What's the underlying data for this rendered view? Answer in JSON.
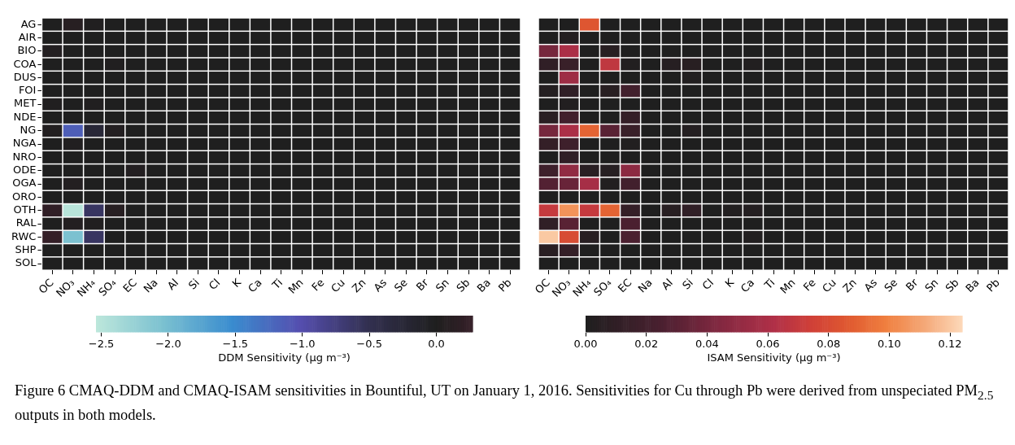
{
  "chart_data": [
    {
      "type": "heatmap",
      "clabel": "DDM Sensitivity (μg m⁻³)",
      "categories": [
        "OC",
        "NO₃",
        "NH₄",
        "SO₄",
        "EC",
        "Na",
        "Al",
        "Si",
        "Cl",
        "K",
        "Ca",
        "Ti",
        "Mn",
        "Fe",
        "Cu",
        "Zn",
        "As",
        "Se",
        "Br",
        "Sn",
        "Sb",
        "Ba",
        "Pb"
      ],
      "y_categories": [
        "AG",
        "AIR",
        "BIO",
        "COA",
        "DUS",
        "FOI",
        "MET",
        "NDE",
        "NG",
        "NGA",
        "NRO",
        "ODE",
        "OGA",
        "ORO",
        "OTH",
        "RAL",
        "RWC",
        "SHP",
        "SOL"
      ],
      "cells": [
        [
          0,
          0.1,
          0.02,
          0,
          0,
          0,
          0,
          0,
          0,
          0,
          0,
          0,
          0,
          0,
          0,
          0,
          0,
          0,
          0,
          0,
          0,
          0,
          0
        ],
        [
          0,
          0,
          0,
          0,
          0,
          0,
          0,
          0,
          0,
          0,
          0,
          0,
          0,
          0,
          0,
          0,
          0,
          0,
          0,
          0,
          0,
          0,
          0
        ],
        [
          0.05,
          0,
          0,
          0,
          0,
          0,
          0,
          0,
          0,
          0,
          0,
          0,
          0,
          0,
          0,
          0,
          0,
          0,
          0,
          0,
          0,
          0,
          0
        ],
        [
          0,
          0,
          0,
          0.02,
          0,
          0,
          0,
          0,
          0,
          0,
          0,
          0,
          0,
          0,
          0,
          0,
          0,
          0,
          0,
          0,
          0,
          0,
          0
        ],
        [
          0,
          0,
          0,
          0,
          0,
          0,
          0,
          0,
          0,
          0,
          0,
          0,
          0,
          0,
          0,
          0,
          0,
          0,
          0,
          0,
          0,
          0,
          0
        ],
        [
          0,
          0,
          0,
          0,
          0,
          0,
          0,
          0,
          0,
          0,
          0,
          0,
          0,
          0,
          0,
          0,
          0,
          0,
          0,
          0,
          0,
          0,
          0
        ],
        [
          0.02,
          0,
          0.02,
          0,
          0,
          0,
          0,
          0,
          0,
          0,
          0,
          0,
          0,
          0,
          0,
          0,
          0,
          0,
          0,
          0,
          0,
          0,
          0
        ],
        [
          0,
          0,
          0,
          0,
          0,
          0,
          0,
          0,
          0,
          0,
          0,
          0,
          0,
          0,
          0,
          0,
          0,
          0,
          0,
          0,
          0,
          0,
          0
        ],
        [
          0.03,
          -1.15,
          -0.25,
          0.05,
          0,
          0,
          0,
          0,
          0,
          0,
          0,
          0,
          0,
          0,
          0,
          0,
          0,
          0,
          0,
          0,
          0,
          0,
          0
        ],
        [
          0,
          0.02,
          0,
          0,
          0,
          0,
          0,
          0,
          0,
          0,
          0,
          0,
          0,
          0,
          0,
          0,
          0,
          0,
          0,
          0,
          0,
          0,
          0
        ],
        [
          0,
          0,
          0,
          0,
          0,
          0,
          0,
          0,
          0,
          0,
          0,
          0,
          0,
          0,
          0,
          0,
          0,
          0,
          0,
          0,
          0,
          0,
          0
        ],
        [
          0,
          0,
          0,
          0,
          0.05,
          0,
          0,
          0,
          0,
          0,
          0,
          0,
          0,
          0,
          0,
          0,
          0,
          0,
          0,
          0,
          0,
          0,
          0
        ],
        [
          0,
          0.05,
          0,
          0,
          0,
          0,
          0,
          0,
          0,
          0,
          0,
          0,
          0,
          0,
          0,
          0,
          0,
          0,
          0,
          0,
          0,
          0,
          0
        ],
        [
          0,
          0,
          0,
          0,
          0,
          0,
          0,
          0,
          0,
          0,
          0,
          0,
          0,
          0,
          0,
          0,
          0,
          0,
          0,
          0,
          0,
          0,
          0
        ],
        [
          0.2,
          -2.5,
          -0.6,
          0.1,
          0,
          0,
          0,
          0,
          0,
          0,
          0,
          0,
          0,
          0,
          0,
          0,
          0,
          0,
          0,
          0,
          0,
          0,
          0
        ],
        [
          0,
          0.05,
          0.02,
          0,
          0,
          0,
          0,
          0,
          0,
          0,
          0,
          0,
          0,
          0,
          0,
          0,
          0,
          0,
          0,
          0,
          0,
          0,
          0
        ],
        [
          0.25,
          -2.05,
          -0.6,
          0,
          0,
          0,
          0,
          0,
          0,
          0,
          0,
          0,
          0,
          0,
          0,
          0,
          0,
          0,
          0,
          0,
          0,
          0,
          0
        ],
        [
          0,
          0,
          0,
          0,
          0,
          0,
          0,
          0,
          0,
          0,
          0,
          0,
          0,
          0,
          0,
          0,
          0,
          0,
          0,
          0,
          0,
          0,
          0
        ],
        [
          0,
          0,
          0,
          0,
          0,
          0,
          0,
          0,
          0,
          0,
          0,
          0,
          0,
          0,
          0,
          0,
          0,
          0,
          0,
          0,
          0,
          0,
          0
        ]
      ],
      "clim": [
        -2.54,
        0.27
      ],
      "cticks": [
        {
          "value": -2.5,
          "label": "−2.5"
        },
        {
          "value": -2,
          "label": "−2.0"
        },
        {
          "value": -1.5,
          "label": "−1.5"
        },
        {
          "value": -1,
          "label": "−1.0"
        },
        {
          "value": -0.5,
          "label": "−0.5"
        },
        {
          "value": 0,
          "label": "0.0"
        }
      ],
      "annotations": [
        "Figure 6 CMAQ-DDM and CMAQ-ISAM sensitivities in Bountiful, UT on January 1, 2016. Sensitivities for Cu through Pb were derived from unspeciated PM$_{2.5}$ outputs in both models."
      ]
    },
    {
      "type": "heatmap",
      "clabel": "ISAM Sensitivity (μg m⁻³)",
      "tick_labels": "x",
      "categories": [
        "OC",
        "NO₃",
        "NH₄",
        "SO₄",
        "EC",
        "Na",
        "Al",
        "Si",
        "Cl",
        "K",
        "Ca",
        "Ti",
        "Mn",
        "Fe",
        "Cu",
        "Zn",
        "As",
        "Se",
        "Br",
        "Sn",
        "Sb",
        "Ba",
        "Pb"
      ],
      "y_categories": [
        null,
        null,
        null,
        null,
        null,
        null,
        null,
        null,
        null,
        null,
        null,
        null,
        null,
        null,
        null,
        null,
        null,
        null,
        null
      ],
      "cells": [
        [
          0,
          0,
          0.085,
          0,
          0,
          0,
          0,
          0,
          0,
          0,
          0,
          0,
          0,
          0,
          0,
          0,
          0,
          0,
          0,
          0,
          0,
          0,
          0
        ],
        [
          0,
          0.003,
          0,
          0,
          0,
          0,
          0,
          0,
          0,
          0,
          0,
          0,
          0,
          0,
          0,
          0,
          0,
          0,
          0,
          0,
          0,
          0,
          0
        ],
        [
          0.04,
          0.06,
          0,
          0.005,
          0,
          0,
          0,
          0,
          0,
          0,
          0,
          0,
          0,
          0,
          0,
          0,
          0,
          0,
          0,
          0,
          0,
          0,
          0
        ],
        [
          0.01,
          0.015,
          0,
          0.068,
          0.002,
          0,
          0.004,
          0.005,
          0,
          0,
          0.002,
          0,
          0,
          0,
          0,
          0,
          0,
          0,
          0,
          0,
          0,
          0,
          0
        ],
        [
          0,
          0.055,
          0,
          0,
          0,
          0,
          0,
          0.002,
          0,
          0,
          0,
          0,
          0,
          0,
          0,
          0,
          0,
          0,
          0,
          0,
          0,
          0,
          0
        ],
        [
          0.003,
          0.01,
          0,
          0.005,
          0.02,
          0,
          0,
          0,
          0,
          0,
          0,
          0,
          0,
          0,
          0,
          0,
          0,
          0,
          0,
          0,
          0,
          0,
          0
        ],
        [
          0,
          0.002,
          0,
          0,
          0,
          0,
          0,
          0,
          0,
          0,
          0,
          0,
          0,
          0,
          0,
          0,
          0,
          0,
          0,
          0,
          0,
          0,
          0
        ],
        [
          0.006,
          0.02,
          0,
          0,
          0.012,
          0,
          0,
          0,
          0,
          0,
          0,
          0,
          0,
          0,
          0,
          0,
          0,
          0,
          0,
          0,
          0,
          0,
          0
        ],
        [
          0.04,
          0.06,
          0.09,
          0.03,
          0.015,
          0,
          0,
          0.003,
          0,
          0,
          0,
          0,
          0,
          0,
          0,
          0,
          0,
          0,
          0,
          0,
          0,
          0,
          0
        ],
        [
          0.012,
          0.018,
          0,
          0,
          0.002,
          0,
          0,
          0,
          0,
          0,
          0,
          0,
          0,
          0,
          0,
          0,
          0,
          0,
          0,
          0,
          0,
          0,
          0
        ],
        [
          0,
          0.01,
          0,
          0,
          0,
          0,
          0,
          0,
          0,
          0,
          0,
          0,
          0,
          0,
          0,
          0,
          0,
          0,
          0,
          0,
          0,
          0,
          0
        ],
        [
          0.018,
          0.05,
          0.006,
          0.004,
          0.048,
          0,
          0,
          0,
          0,
          0,
          0,
          0,
          0,
          0,
          0,
          0,
          0,
          0,
          0,
          0,
          0,
          0,
          0
        ],
        [
          0.028,
          0.035,
          0.058,
          0.002,
          0.02,
          0,
          0,
          0,
          0,
          0,
          0,
          0,
          0,
          0,
          0,
          0,
          0,
          0,
          0,
          0,
          0,
          0,
          0
        ],
        [
          0,
          0,
          0,
          0,
          0,
          0,
          0,
          0,
          0,
          0,
          0,
          0,
          0,
          0,
          0,
          0,
          0,
          0,
          0,
          0,
          0,
          0,
          0
        ],
        [
          0.07,
          0.105,
          0.07,
          0.09,
          0.012,
          0,
          0.005,
          0.01,
          0,
          0.002,
          0.003,
          0,
          0,
          0,
          0,
          0,
          0,
          0,
          0,
          0,
          0,
          0,
          0
        ],
        [
          0.01,
          0.03,
          0,
          0,
          0.025,
          0,
          0,
          0,
          0,
          0,
          0,
          0,
          0,
          0,
          0,
          0,
          0,
          0,
          0,
          0,
          0,
          0,
          0
        ],
        [
          0.12,
          0.08,
          0.005,
          0,
          0.025,
          0,
          0,
          0,
          0,
          0,
          0.002,
          0,
          0,
          0,
          0,
          0,
          0,
          0,
          0,
          0,
          0,
          0,
          0
        ],
        [
          0.006,
          0.012,
          0,
          0,
          0,
          0,
          0,
          0,
          0,
          0,
          0,
          0,
          0,
          0,
          0,
          0,
          0,
          0,
          0,
          0,
          0,
          0,
          0
        ],
        [
          0,
          0,
          0,
          0,
          0,
          0,
          0,
          0,
          0,
          0,
          0,
          0,
          0,
          0,
          0,
          0,
          0,
          0,
          0,
          0,
          0,
          0,
          0
        ]
      ],
      "clim": [
        0,
        0.124
      ],
      "cticks": [
        {
          "value": 0,
          "label": "0.00"
        },
        {
          "value": 0.02,
          "label": "0.02"
        },
        {
          "value": 0.04,
          "label": "0.04"
        },
        {
          "value": 0.06,
          "label": "0.06"
        },
        {
          "value": 0.08,
          "label": "0.08"
        },
        {
          "value": 0.1,
          "label": "0.10"
        },
        {
          "value": 0.12,
          "label": "0.12"
        }
      ]
    }
  ]
}
